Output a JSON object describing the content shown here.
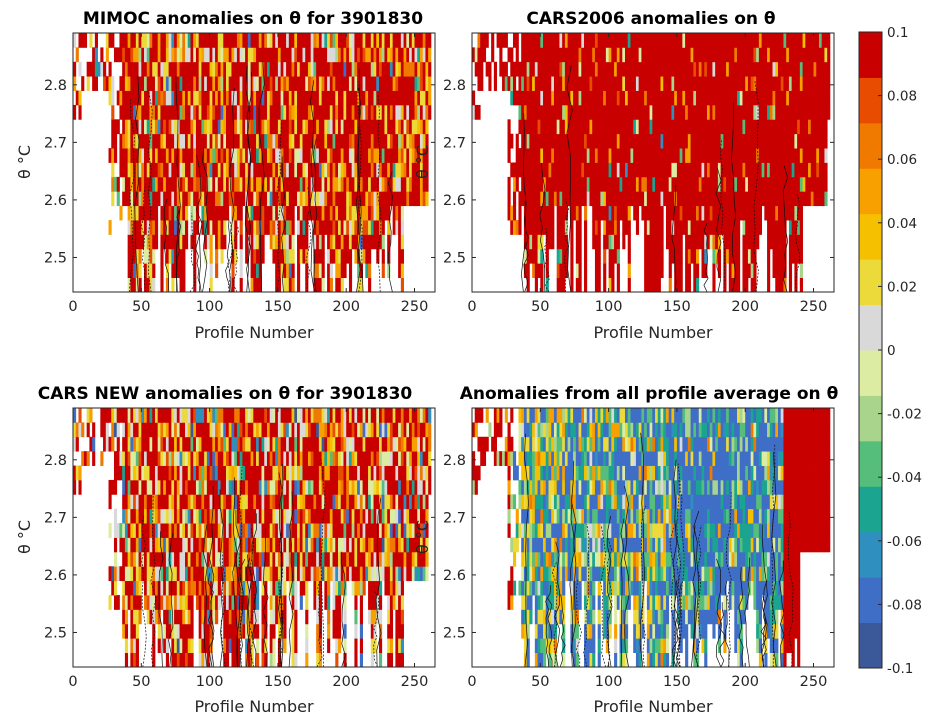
{
  "chart_data": [
    {
      "type": "heatmap",
      "title": "MIMOC anomalies on θ  for 3901830",
      "xlabel": "Profile Number",
      "ylabel": "θ °C",
      "xlim": [
        0,
        265
      ],
      "ylim": [
        2.44,
        2.89
      ],
      "xticks": [
        "0",
        "50",
        "100",
        "150",
        "200",
        "250"
      ],
      "yticks": [
        "2.5",
        "2.6",
        "2.7",
        "2.8"
      ],
      "coverage_x_range": [
        0,
        262
      ],
      "dominant_value": 0.1,
      "note_values": "anomalies mostly positive (0.02 to 0.1) with scattered near-zero values"
    },
    {
      "type": "heatmap",
      "title": "CARS2006 anomalies on θ",
      "xlabel": "Profile Number",
      "ylabel": "θ °C",
      "xlim": [
        0,
        265
      ],
      "ylim": [
        2.44,
        2.89
      ],
      "xticks": [
        "0",
        "50",
        "100",
        "150",
        "200",
        "250"
      ],
      "yticks": [
        "2.5",
        "2.6",
        "2.7",
        "2.8"
      ],
      "coverage_x_range": [
        0,
        262
      ],
      "dominant_value": 0.1
    },
    {
      "type": "heatmap",
      "title": "CARS NEW anomalies on θ for 3901830",
      "xlabel": "Profile Number",
      "ylabel": "θ °C",
      "xlim": [
        0,
        265
      ],
      "ylim": [
        2.44,
        2.89
      ],
      "xticks": [
        "0",
        "50",
        "100",
        "150",
        "200",
        "250"
      ],
      "yticks": [
        "2.5",
        "2.6",
        "2.7",
        "2.8"
      ],
      "coverage_x_range": [
        0,
        262
      ],
      "dominant_value": 0.1
    },
    {
      "type": "heatmap",
      "title": "Anomalies from all profile average on θ",
      "xlabel": "Profile Number",
      "ylabel": "θ °C",
      "xlim": [
        0,
        265
      ],
      "ylim": [
        2.44,
        2.89
      ],
      "xticks": [
        "0",
        "50",
        "100",
        "150",
        "200",
        "250"
      ],
      "yticks": [
        "2.5",
        "2.6",
        "2.7",
        "2.8"
      ],
      "coverage_x_range": [
        0,
        262
      ],
      "dominant_value": -0.08
    }
  ],
  "colorbar": {
    "min": -0.1,
    "max": 0.1,
    "tick_labels": [
      "0.1",
      "0.08",
      "0.06",
      "0.04",
      "0.02",
      "0",
      "-0.02",
      "-0.04",
      "-0.06",
      "-0.08",
      "-0.1"
    ],
    "tick_values": [
      0.1,
      0.08,
      0.06,
      0.04,
      0.02,
      0,
      -0.02,
      -0.04,
      -0.06,
      -0.08,
      -0.1
    ],
    "colors": [
      "#3b5998",
      "#3f6ec7",
      "#2f8fbf",
      "#1ba48f",
      "#56be7b",
      "#a8d58b",
      "#dceca3",
      "#d9d9d9",
      "#ecd93a",
      "#f5c000",
      "#f8a000",
      "#f07a00",
      "#e84c00",
      "#c80000"
    ]
  }
}
